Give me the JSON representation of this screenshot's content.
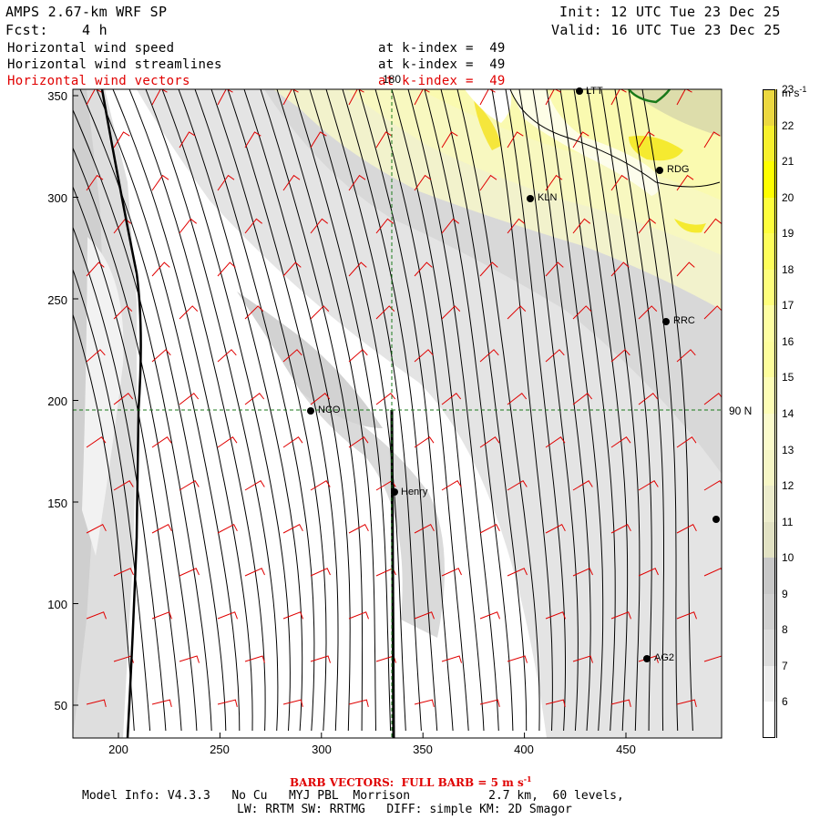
{
  "header": {
    "title": "AMPS 2.67-km WRF SP",
    "fcst": "Fcst:    4 h",
    "init": "Init: 12 UTC Tue 23 Dec 25",
    "valid": "Valid: 16 UTC Tue 23 Dec 25",
    "fields": [
      {
        "name": "Horizontal wind speed",
        "level": "at k-index =  49",
        "color": "#000000"
      },
      {
        "name": "Horizontal wind streamlines",
        "level": "at k-index =  49",
        "color": "#000000"
      },
      {
        "name": "Horizontal wind vectors",
        "level": "at k-index =  49",
        "color": "#e00000"
      }
    ]
  },
  "map": {
    "x_ticks": [
      "200",
      "250",
      "300",
      "350",
      "400",
      "450"
    ],
    "y_ticks": [
      "350",
      "300",
      "250",
      "200",
      "150",
      "100",
      "50"
    ],
    "meridian_label": "180",
    "parallel_label": "90 N",
    "stations": [
      {
        "name": "NCO"
      },
      {
        "name": "Henry"
      },
      {
        "name": "KLN"
      },
      {
        "name": "RDG"
      },
      {
        "name": "RRC"
      },
      {
        "name": "AG2"
      },
      {
        "name": "LTT"
      }
    ]
  },
  "colorbar": {
    "unit": "m s",
    "unit_exp": "-1",
    "levels": [
      "6",
      "7",
      "8",
      "9",
      "10",
      "11",
      "12",
      "13",
      "14",
      "15",
      "16",
      "17",
      "18",
      "19",
      "20",
      "21",
      "22",
      "23"
    ],
    "colors": [
      "#ffffff",
      "#eeeeee",
      "#dcdcdc",
      "#d0d0d0",
      "#c8c8c8",
      "#e2e2c4",
      "#ececcc",
      "#f6f6c6",
      "#fbfbcc",
      "#fdfdb6",
      "#fdfd9c",
      "#fefea2",
      "#fefe7c",
      "#fefe5a",
      "#fefe3c",
      "#fefe00",
      "#f8f02c",
      "#ecd840"
    ]
  },
  "footer": {
    "barb_prefix": "BARB VECTORS:  FULL BARB = 5 m s",
    "barb_exp": "-1",
    "model_line": "Model Info: V4.3.3   No Cu   MYJ PBL  Morrison           2.7 km,  60 levels,",
    "physics_line": "LW: RRTM SW: RRTMG   DIFF: simple KM: 2D Smagor"
  }
}
